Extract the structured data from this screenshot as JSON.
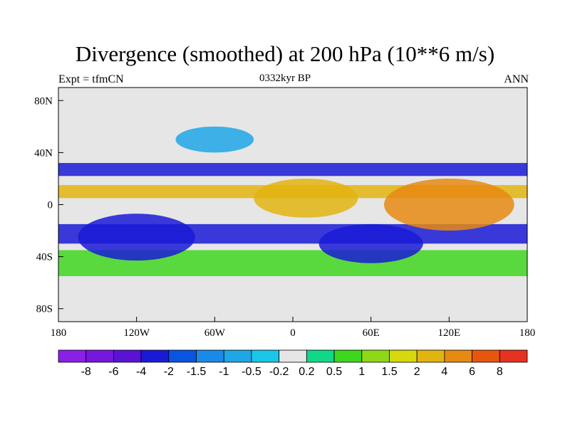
{
  "title": "Divergence (smoothed) at 200 hPa (10**6 m/s)",
  "left_string": "Expt = tfmCN",
  "center_string": "0332kyr BP",
  "right_string": "ANN",
  "map": {
    "projection": "cylindrical-equidistant",
    "lon_range": [
      -180,
      180
    ],
    "lat_range": [
      -90,
      90
    ],
    "y_ticks": [
      {
        "lat": 80,
        "label": "80N"
      },
      {
        "lat": 40,
        "label": "40N"
      },
      {
        "lat": 0,
        "label": "0"
      },
      {
        "lat": -40,
        "label": "40S"
      },
      {
        "lat": -80,
        "label": "80S"
      }
    ],
    "x_ticks": [
      {
        "lon": -180,
        "label": "180"
      },
      {
        "lon": -120,
        "label": "120W"
      },
      {
        "lon": -60,
        "label": "60W"
      },
      {
        "lon": 0,
        "label": "0"
      },
      {
        "lon": 60,
        "label": "60E"
      },
      {
        "lon": 120,
        "label": "120E"
      },
      {
        "lon": 180,
        "label": "180"
      }
    ],
    "background_color": "#e6e6e6",
    "coastline_color": "#000000"
  },
  "colorbar": {
    "colors": [
      "#8a1fe6",
      "#7716dd",
      "#5a13d4",
      "#1a1ad6",
      "#0a55e0",
      "#1a8ae8",
      "#1ea6e6",
      "#19c6e8",
      "#e6e6e6",
      "#10d888",
      "#3fd61e",
      "#8ed816",
      "#d8d80e",
      "#e2b410",
      "#e68a12",
      "#e6560e",
      "#e6321e"
    ],
    "labels": [
      "-8",
      "-6",
      "-4",
      "-2",
      "-1.5",
      "-1",
      "-0.5",
      "-0.2",
      "0.2",
      "0.5",
      "1",
      "1.5",
      "2",
      "4",
      "6",
      "8"
    ]
  },
  "field": {
    "bands": [
      {
        "lon1": -180,
        "lon2": 180,
        "lat1": 22,
        "lat2": 32,
        "color": "#1a1ad6"
      },
      {
        "lon1": -180,
        "lon2": 180,
        "lat1": 5,
        "lat2": 15,
        "color": "#e2b410"
      },
      {
        "lon1": -180,
        "lon2": 180,
        "lat1": -30,
        "lat2": -15,
        "color": "#1a1ad6"
      },
      {
        "lon1": -180,
        "lon2": 180,
        "lat1": -55,
        "lat2": -35,
        "color": "#3fd61e"
      }
    ],
    "blobs": [
      {
        "lon": 10,
        "lat": 5,
        "rx": 40,
        "ry": 15,
        "color": "#e2b410"
      },
      {
        "lon": 120,
        "lat": 0,
        "rx": 50,
        "ry": 20,
        "color": "#e68a12"
      },
      {
        "lon": -120,
        "lat": -25,
        "rx": 45,
        "ry": 18,
        "color": "#1a1ad6"
      },
      {
        "lon": 60,
        "lat": -30,
        "rx": 40,
        "ry": 15,
        "color": "#1a1ad6"
      },
      {
        "lon": -60,
        "lat": 50,
        "rx": 30,
        "ry": 10,
        "color": "#1ea6e6"
      }
    ]
  }
}
